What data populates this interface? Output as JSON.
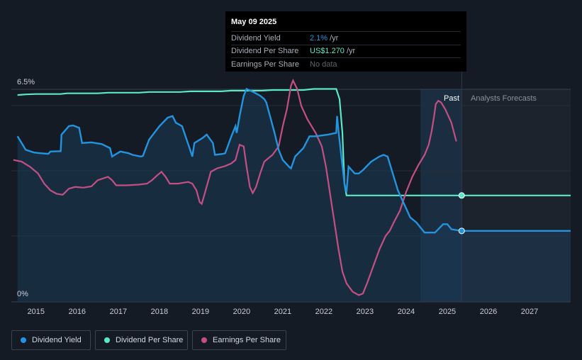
{
  "tooltip": {
    "date": "May 09 2025",
    "rows": [
      {
        "label": "Dividend Yield",
        "value": "2.1%",
        "unit": "/yr",
        "color": "#2394df"
      },
      {
        "label": "Dividend Per Share",
        "value": "US$1.270",
        "unit": "/yr",
        "color": "#5ae8c8"
      },
      {
        "label": "Earnings Per Share",
        "value": "No data",
        "unit": "",
        "color": "#5d646d"
      }
    ]
  },
  "chart_data": {
    "type": "line",
    "y_top_label": "6.5%",
    "y_bottom_label": "0%",
    "ylim": [
      0,
      6.5
    ],
    "xlim": [
      2014.4,
      2028.0
    ],
    "x_ticks": [
      "2015",
      "2016",
      "2017",
      "2018",
      "2019",
      "2020",
      "2021",
      "2022",
      "2023",
      "2024",
      "2025",
      "2026",
      "2027"
    ],
    "x_tick_values": [
      2015,
      2016,
      2017,
      2018,
      2019,
      2020,
      2021,
      2022,
      2023,
      2024,
      2025,
      2026,
      2027
    ],
    "region_labels": {
      "past": "Past",
      "forecast": "Analysts Forecasts"
    },
    "today": 2025.35,
    "past_band_start": 2024.35,
    "series": [
      {
        "name": "Dividend Yield",
        "color": "#2394df",
        "unit": "%",
        "points": [
          [
            2014.55,
            4.9
          ],
          [
            2014.75,
            4.5
          ],
          [
            2014.95,
            4.42
          ],
          [
            2015.1,
            4.4
          ],
          [
            2015.3,
            4.38
          ],
          [
            2015.35,
            4.45
          ],
          [
            2015.6,
            4.46
          ],
          [
            2015.62,
            4.95
          ],
          [
            2015.8,
            5.2
          ],
          [
            2015.9,
            5.22
          ],
          [
            2016.05,
            5.15
          ],
          [
            2016.12,
            4.7
          ],
          [
            2016.35,
            4.72
          ],
          [
            2016.6,
            4.67
          ],
          [
            2016.8,
            4.55
          ],
          [
            2016.85,
            4.3
          ],
          [
            2017.05,
            4.45
          ],
          [
            2017.25,
            4.4
          ],
          [
            2017.35,
            4.35
          ],
          [
            2017.55,
            4.3
          ],
          [
            2017.6,
            4.32
          ],
          [
            2017.75,
            4.8
          ],
          [
            2018.0,
            5.2
          ],
          [
            2018.2,
            5.45
          ],
          [
            2018.32,
            5.5
          ],
          [
            2018.4,
            5.3
          ],
          [
            2018.55,
            5.2
          ],
          [
            2018.72,
            4.6
          ],
          [
            2018.8,
            4.3
          ],
          [
            2018.85,
            4.7
          ],
          [
            2019.05,
            4.85
          ],
          [
            2019.15,
            4.95
          ],
          [
            2019.3,
            4.7
          ],
          [
            2019.35,
            4.35
          ],
          [
            2019.55,
            4.38
          ],
          [
            2019.6,
            4.4
          ],
          [
            2019.75,
            4.9
          ],
          [
            2019.85,
            5.2
          ],
          [
            2019.88,
            5.0
          ],
          [
            2019.95,
            5.5
          ],
          [
            2020.05,
            6.1
          ],
          [
            2020.12,
            6.3
          ],
          [
            2020.3,
            6.2
          ],
          [
            2020.45,
            6.1
          ],
          [
            2020.55,
            6.0
          ],
          [
            2020.6,
            5.9
          ],
          [
            2020.8,
            5.0
          ],
          [
            2020.9,
            4.5
          ],
          [
            2021.0,
            4.2
          ],
          [
            2021.15,
            4.0
          ],
          [
            2021.2,
            3.95
          ],
          [
            2021.3,
            4.3
          ],
          [
            2021.5,
            4.55
          ],
          [
            2021.65,
            4.9
          ],
          [
            2021.8,
            4.9
          ],
          [
            2022.1,
            4.95
          ],
          [
            2022.3,
            5.0
          ],
          [
            2022.32,
            5.5
          ],
          [
            2022.36,
            5.0
          ],
          [
            2022.5,
            3.5
          ],
          [
            2022.55,
            3.25
          ],
          [
            2022.6,
            4.0
          ],
          [
            2022.75,
            3.8
          ],
          [
            2022.85,
            3.8
          ],
          [
            2022.95,
            3.9
          ],
          [
            2023.15,
            4.15
          ],
          [
            2023.35,
            4.3
          ],
          [
            2023.45,
            4.35
          ],
          [
            2023.55,
            4.3
          ],
          [
            2023.8,
            3.3
          ],
          [
            2023.95,
            2.9
          ],
          [
            2024.1,
            2.5
          ],
          [
            2024.25,
            2.35
          ],
          [
            2024.35,
            2.2
          ],
          [
            2024.45,
            2.05
          ],
          [
            2024.6,
            2.05
          ],
          [
            2024.7,
            2.05
          ],
          [
            2024.9,
            2.3
          ],
          [
            2025.0,
            2.3
          ],
          [
            2025.1,
            2.15
          ],
          [
            2025.35,
            2.1
          ],
          [
            2026.0,
            2.1
          ],
          [
            2027.0,
            2.1
          ],
          [
            2028.0,
            2.1
          ]
        ]
      },
      {
        "name": "Dividend Per Share",
        "color": "#5ae8c8",
        "unit": "US$",
        "points": [
          [
            2014.55,
            6.12
          ],
          [
            2014.75,
            6.14
          ],
          [
            2015.0,
            6.15
          ],
          [
            2015.6,
            6.15
          ],
          [
            2015.75,
            6.17
          ],
          [
            2016.5,
            6.17
          ],
          [
            2016.75,
            6.19
          ],
          [
            2017.5,
            6.19
          ],
          [
            2017.75,
            6.21
          ],
          [
            2018.5,
            6.21
          ],
          [
            2018.75,
            6.23
          ],
          [
            2019.5,
            6.23
          ],
          [
            2019.75,
            6.25
          ],
          [
            2020.5,
            6.25
          ],
          [
            2020.75,
            6.27
          ],
          [
            2021.5,
            6.27
          ],
          [
            2021.75,
            6.3
          ],
          [
            2022.3,
            6.3
          ],
          [
            2022.38,
            6.0
          ],
          [
            2022.45,
            5.0
          ],
          [
            2022.5,
            3.5
          ],
          [
            2022.55,
            3.15
          ],
          [
            2023.0,
            3.15
          ],
          [
            2024.0,
            3.15
          ],
          [
            2025.35,
            3.15
          ],
          [
            2026.0,
            3.15
          ],
          [
            2027.0,
            3.15
          ],
          [
            2028.0,
            3.15
          ]
        ]
      },
      {
        "name": "Earnings Per Share",
        "color": "#c44f85",
        "unit": "",
        "points": [
          [
            2014.45,
            4.2
          ],
          [
            2014.65,
            4.15
          ],
          [
            2014.85,
            4.0
          ],
          [
            2015.05,
            3.8
          ],
          [
            2015.2,
            3.5
          ],
          [
            2015.35,
            3.3
          ],
          [
            2015.5,
            3.2
          ],
          [
            2015.65,
            3.17
          ],
          [
            2015.8,
            3.35
          ],
          [
            2015.95,
            3.4
          ],
          [
            2016.15,
            3.38
          ],
          [
            2016.35,
            3.42
          ],
          [
            2016.5,
            3.6
          ],
          [
            2016.75,
            3.7
          ],
          [
            2016.85,
            3.6
          ],
          [
            2016.95,
            3.45
          ],
          [
            2017.2,
            3.45
          ],
          [
            2017.5,
            3.47
          ],
          [
            2017.7,
            3.5
          ],
          [
            2017.82,
            3.6
          ],
          [
            2017.95,
            3.75
          ],
          [
            2018.05,
            3.85
          ],
          [
            2018.15,
            3.7
          ],
          [
            2018.25,
            3.5
          ],
          [
            2018.45,
            3.5
          ],
          [
            2018.7,
            3.55
          ],
          [
            2018.8,
            3.5
          ],
          [
            2018.9,
            3.3
          ],
          [
            2018.98,
            2.95
          ],
          [
            2019.03,
            2.9
          ],
          [
            2019.1,
            3.2
          ],
          [
            2019.25,
            3.85
          ],
          [
            2019.4,
            3.95
          ],
          [
            2019.6,
            4.02
          ],
          [
            2019.75,
            4.1
          ],
          [
            2019.85,
            4.2
          ],
          [
            2019.95,
            4.65
          ],
          [
            2020.05,
            4.6
          ],
          [
            2020.12,
            4.0
          ],
          [
            2020.2,
            3.4
          ],
          [
            2020.27,
            3.22
          ],
          [
            2020.35,
            3.4
          ],
          [
            2020.45,
            3.8
          ],
          [
            2020.55,
            4.15
          ],
          [
            2020.75,
            4.35
          ],
          [
            2020.9,
            4.6
          ],
          [
            2021.0,
            5.2
          ],
          [
            2021.1,
            5.7
          ],
          [
            2021.2,
            6.4
          ],
          [
            2021.25,
            6.55
          ],
          [
            2021.35,
            6.3
          ],
          [
            2021.45,
            5.8
          ],
          [
            2021.6,
            5.4
          ],
          [
            2021.8,
            5.0
          ],
          [
            2021.95,
            4.6
          ],
          [
            2022.05,
            4.0
          ],
          [
            2022.15,
            3.2
          ],
          [
            2022.25,
            2.4
          ],
          [
            2022.35,
            1.6
          ],
          [
            2022.45,
            0.9
          ],
          [
            2022.55,
            0.55
          ],
          [
            2022.7,
            0.3
          ],
          [
            2022.85,
            0.2
          ],
          [
            2022.95,
            0.25
          ],
          [
            2023.05,
            0.55
          ],
          [
            2023.2,
            1.05
          ],
          [
            2023.35,
            1.55
          ],
          [
            2023.5,
            1.95
          ],
          [
            2023.6,
            2.1
          ],
          [
            2023.7,
            2.35
          ],
          [
            2023.85,
            2.7
          ],
          [
            2024.0,
            3.25
          ],
          [
            2024.15,
            3.7
          ],
          [
            2024.3,
            4.05
          ],
          [
            2024.45,
            4.35
          ],
          [
            2024.55,
            4.65
          ],
          [
            2024.62,
            5.05
          ],
          [
            2024.68,
            5.5
          ],
          [
            2024.72,
            5.85
          ],
          [
            2024.78,
            5.95
          ],
          [
            2024.85,
            5.9
          ],
          [
            2024.95,
            5.7
          ],
          [
            2025.1,
            5.3
          ],
          [
            2025.22,
            4.75
          ]
        ]
      }
    ]
  }
}
